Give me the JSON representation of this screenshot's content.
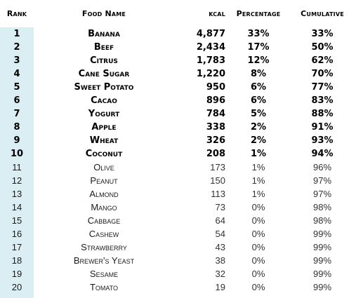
{
  "colors": {
    "rank_column_background": "#daeef3",
    "page_background": "#ffffff",
    "text": "#000000"
  },
  "table": {
    "headers": {
      "rank": "Rank",
      "food_name": "Food Name",
      "kcal": "kcal",
      "percentage": "Percentage",
      "cumulative": "Cumulative"
    },
    "rows": [
      {
        "rank": "1",
        "name": "Banana",
        "kcal": "4,877",
        "percentage": "33%",
        "cumulative": "33%"
      },
      {
        "rank": "2",
        "name": "Beef",
        "kcal": "2,434",
        "percentage": "17%",
        "cumulative": "50%"
      },
      {
        "rank": "3",
        "name": "Citrus",
        "kcal": "1,783",
        "percentage": "12%",
        "cumulative": "62%"
      },
      {
        "rank": "4",
        "name": "Cane Sugar",
        "kcal": "1,220",
        "percentage": "8%",
        "cumulative": "70%"
      },
      {
        "rank": "5",
        "name": "Sweet Potato",
        "kcal": "950",
        "percentage": "6%",
        "cumulative": "77%"
      },
      {
        "rank": "6",
        "name": "Cacao",
        "kcal": "896",
        "percentage": "6%",
        "cumulative": "83%"
      },
      {
        "rank": "7",
        "name": "Yogurt",
        "kcal": "784",
        "percentage": "5%",
        "cumulative": "88%"
      },
      {
        "rank": "8",
        "name": "Apple",
        "kcal": "338",
        "percentage": "2%",
        "cumulative": "91%"
      },
      {
        "rank": "9",
        "name": "Wheat",
        "kcal": "326",
        "percentage": "2%",
        "cumulative": "93%"
      },
      {
        "rank": "10",
        "name": "Coconut",
        "kcal": "208",
        "percentage": "1%",
        "cumulative": "94%"
      },
      {
        "rank": "11",
        "name": "Olive",
        "kcal": "173",
        "percentage": "1%",
        "cumulative": "96%"
      },
      {
        "rank": "12",
        "name": "Peanut",
        "kcal": "150",
        "percentage": "1%",
        "cumulative": "97%"
      },
      {
        "rank": "13",
        "name": "Almond",
        "kcal": "113",
        "percentage": "1%",
        "cumulative": "97%"
      },
      {
        "rank": "14",
        "name": "Mango",
        "kcal": "73",
        "percentage": "0%",
        "cumulative": "98%"
      },
      {
        "rank": "15",
        "name": "Cabbage",
        "kcal": "64",
        "percentage": "0%",
        "cumulative": "98%"
      },
      {
        "rank": "16",
        "name": "Cashew",
        "kcal": "54",
        "percentage": "0%",
        "cumulative": "99%"
      },
      {
        "rank": "17",
        "name": "Strawberry",
        "kcal": "43",
        "percentage": "0%",
        "cumulative": "99%"
      },
      {
        "rank": "18",
        "name": "Brewer's Yeast",
        "kcal": "38",
        "percentage": "0%",
        "cumulative": "99%"
      },
      {
        "rank": "19",
        "name": "Sesame",
        "kcal": "32",
        "percentage": "0%",
        "cumulative": "99%"
      },
      {
        "rank": "20",
        "name": "Tomato",
        "kcal": "19",
        "percentage": "0%",
        "cumulative": "99%"
      }
    ]
  }
}
